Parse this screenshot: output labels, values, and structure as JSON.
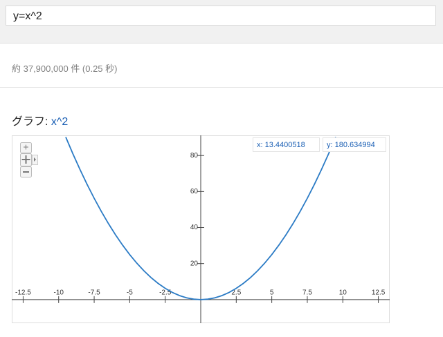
{
  "search": {
    "query": "y=x^2",
    "stats": "約 37,900,000 件 (0.25 秒)",
    "graph_label": "グラフ:"
  },
  "chart_data": {
    "type": "line",
    "title": "x^2",
    "x": [
      -9.5,
      -9,
      -8.5,
      -8,
      -7.5,
      -7,
      -6.5,
      -6,
      -5.5,
      -5,
      -4.5,
      -4,
      -3.5,
      -3,
      -2.5,
      -2,
      -1.5,
      -1,
      -0.5,
      0,
      0.5,
      1,
      1.5,
      2,
      2.5,
      3,
      3.5,
      4,
      4.5,
      5,
      5.5,
      6,
      6.5,
      7,
      7.5,
      8,
      8.5,
      9,
      9.5
    ],
    "series": [
      {
        "color": "#2b7bc5",
        "values": [
          90.25,
          81,
          72.25,
          64,
          56.25,
          49,
          42.25,
          36,
          30.25,
          25,
          20.25,
          16,
          12.25,
          9,
          6.25,
          4,
          2.25,
          1,
          0.25,
          0,
          0.25,
          1,
          2.25,
          4,
          6.25,
          9,
          12.25,
          16,
          20.25,
          25,
          30.25,
          36,
          42.25,
          49,
          56.25,
          64,
          72.25,
          81,
          90.25
        ]
      }
    ],
    "xlim": [
      -13.3,
      13.3
    ],
    "ylim": [
      -13.1,
      91.2
    ],
    "xticks": [
      -12.5,
      -10,
      -7.5,
      -5,
      -2.5,
      2.5,
      5,
      7.5,
      10,
      12.5
    ],
    "yticks": [
      20,
      40,
      60,
      80
    ],
    "annotations": [
      "x: 13.4400518",
      "y: 180.634994"
    ]
  }
}
